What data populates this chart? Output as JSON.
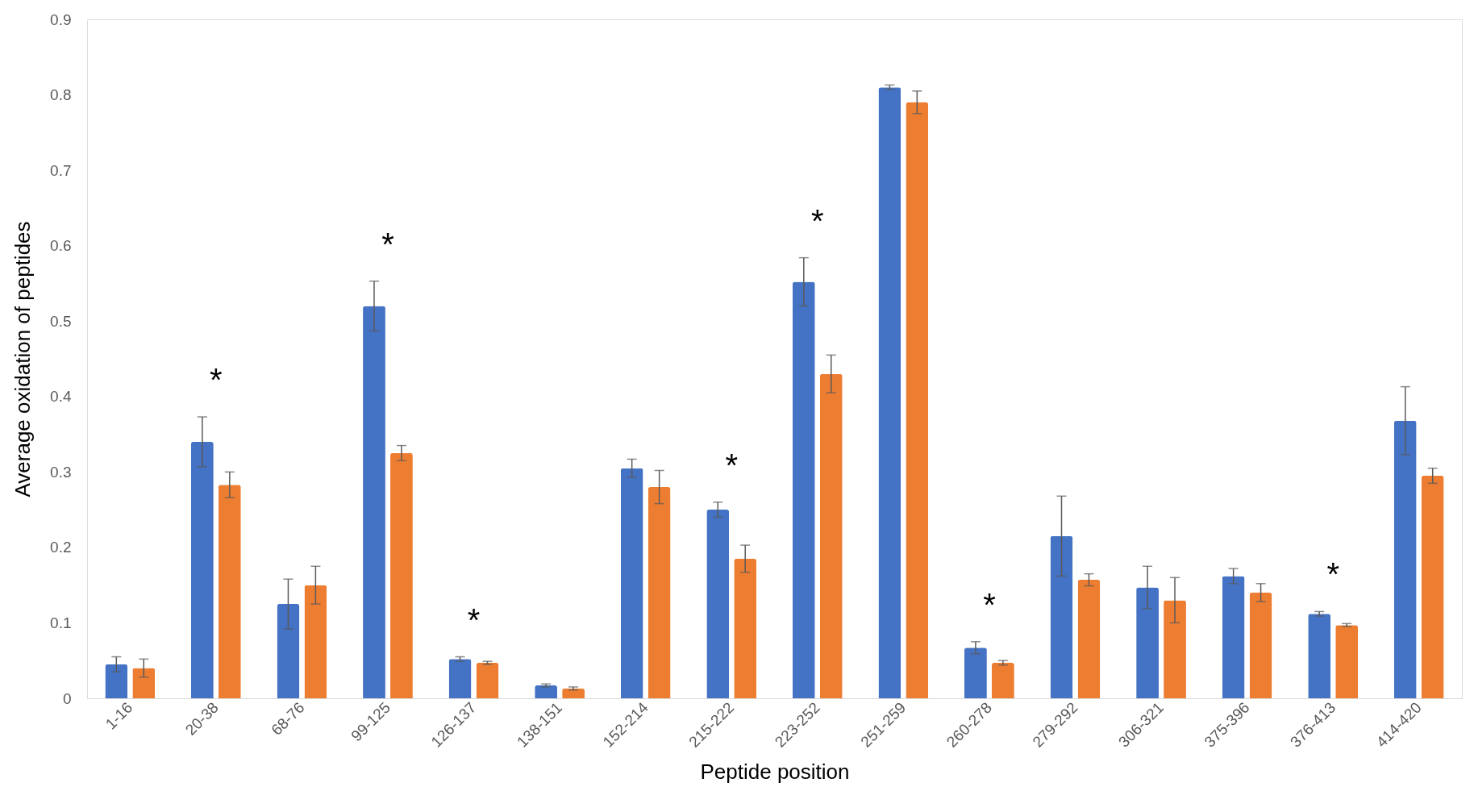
{
  "chart_data": {
    "type": "bar",
    "xlabel": "Peptide position",
    "ylabel": "Average oxidation of peptides",
    "categories": [
      "1-16",
      "20-38",
      "68-76",
      "99-125",
      "126-137",
      "138-151",
      "152-214",
      "215-222",
      "223-252",
      "251-259",
      "260-278",
      "279-292",
      "306-321",
      "375-396",
      "376-413",
      "414-420"
    ],
    "series": [
      {
        "color": "#4472c4",
        "values": [
          0.045,
          0.34,
          0.125,
          0.52,
          0.052,
          0.017,
          0.305,
          0.25,
          0.552,
          0.81,
          0.067,
          0.215,
          0.147,
          0.162,
          0.112,
          0.368
        ],
        "errors": [
          0.01,
          0.033,
          0.033,
          0.033,
          0.003,
          0.002,
          0.012,
          0.01,
          0.032,
          0.003,
          0.008,
          0.053,
          0.028,
          0.01,
          0.003,
          0.045
        ]
      },
      {
        "color": "#ed7d31",
        "values": [
          0.04,
          0.283,
          0.15,
          0.325,
          0.047,
          0.013,
          0.28,
          0.185,
          0.43,
          0.79,
          0.047,
          0.157,
          0.13,
          0.14,
          0.097,
          0.295
        ],
        "errors": [
          0.012,
          0.017,
          0.025,
          0.01,
          0.002,
          0.002,
          0.022,
          0.018,
          0.025,
          0.015,
          0.003,
          0.008,
          0.03,
          0.012,
          0.002,
          0.01
        ]
      }
    ],
    "ylim": [
      0,
      0.9
    ],
    "yticks": [
      0,
      0.1,
      0.2,
      0.3,
      0.4,
      0.5,
      0.6,
      0.7,
      0.8,
      0.9
    ],
    "grid": false,
    "annotations": [
      {
        "text": "*",
        "x": "20-38",
        "y": 0.373
      },
      {
        "text": "*",
        "x": "99-125",
        "y": 0.553
      },
      {
        "text": "*",
        "x": "126-137",
        "y": 0.055
      },
      {
        "text": "*",
        "x": "215-222",
        "y": 0.26
      },
      {
        "text": "*",
        "x": "223-252",
        "y": 0.584
      },
      {
        "text": "*",
        "x": "260-278",
        "y": 0.075
      },
      {
        "text": "*",
        "x": "376-413",
        "y": 0.115
      }
    ]
  }
}
